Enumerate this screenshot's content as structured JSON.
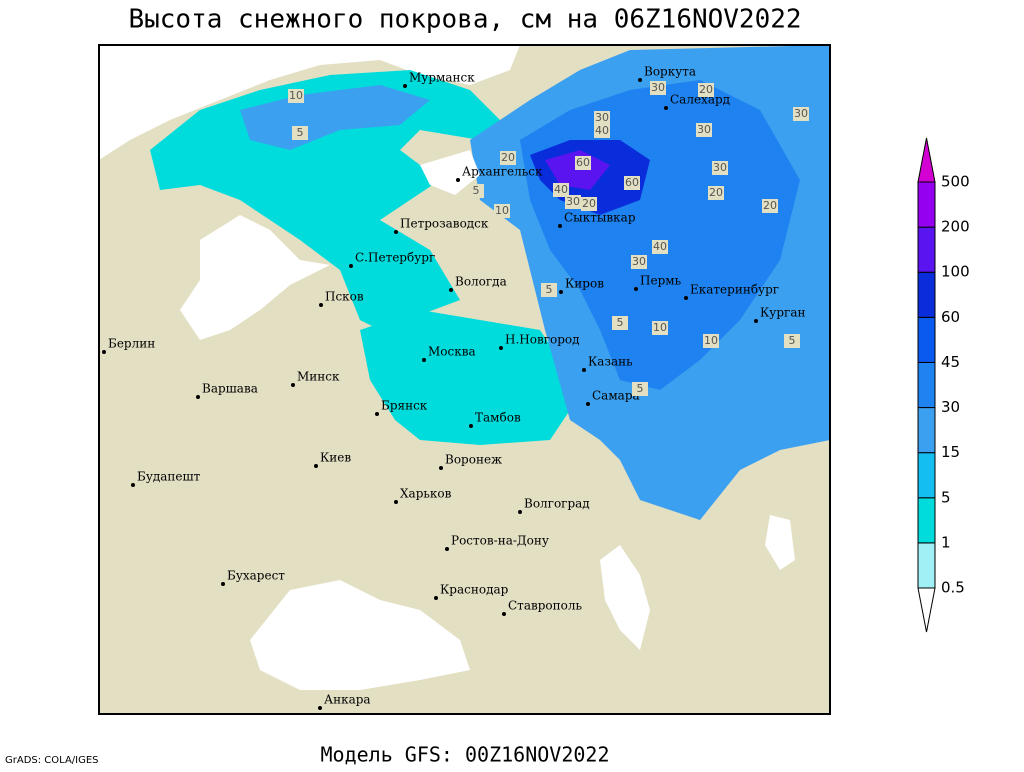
{
  "title": "Высота снежного покрова, см на 06Z16NOV2022",
  "footer": {
    "credit": "GrADS: COLA/IGES",
    "model": "Модель GFS: 00Z16NOV2022"
  },
  "map": {
    "cities": [
      "Мурманск",
      "Воркута",
      "Салехард",
      "Архангельск",
      "Сыктывкар",
      "Петрозаводск",
      "С.Петербург",
      "Вологда",
      "Киров",
      "Пермь",
      "Екатеринбург",
      "Курган",
      "Псков",
      "Берлин",
      "Москва",
      "Н.Новгород",
      "Казань",
      "Варшава",
      "Минск",
      "Брянск",
      "Тамбов",
      "Самара",
      "Киев",
      "Воронеж",
      "Будапешт",
      "Харьков",
      "Волгоград",
      "Ростов-на-Дону",
      "Бухарест",
      "Краснодар",
      "Ставрополь",
      "Анкара"
    ],
    "contour_labels": [
      10,
      5,
      20,
      5,
      10,
      60,
      40,
      30,
      20,
      40,
      30,
      5,
      5,
      10,
      10,
      5,
      20,
      30,
      30,
      30,
      30,
      20,
      20,
      40,
      30,
      60,
      5
    ]
  },
  "legend": {
    "levels": [
      0.5,
      1,
      5,
      15,
      30,
      45,
      60,
      100,
      200,
      500
    ],
    "colors": [
      "#ffffff",
      "#a0f0f5",
      "#00dcdc",
      "#14bef0",
      "#3ca0f0",
      "#1e82f0",
      "#0a5af0",
      "#0a2ddc",
      "#5a14f0",
      "#9600f0",
      "#d200d2"
    ]
  }
}
